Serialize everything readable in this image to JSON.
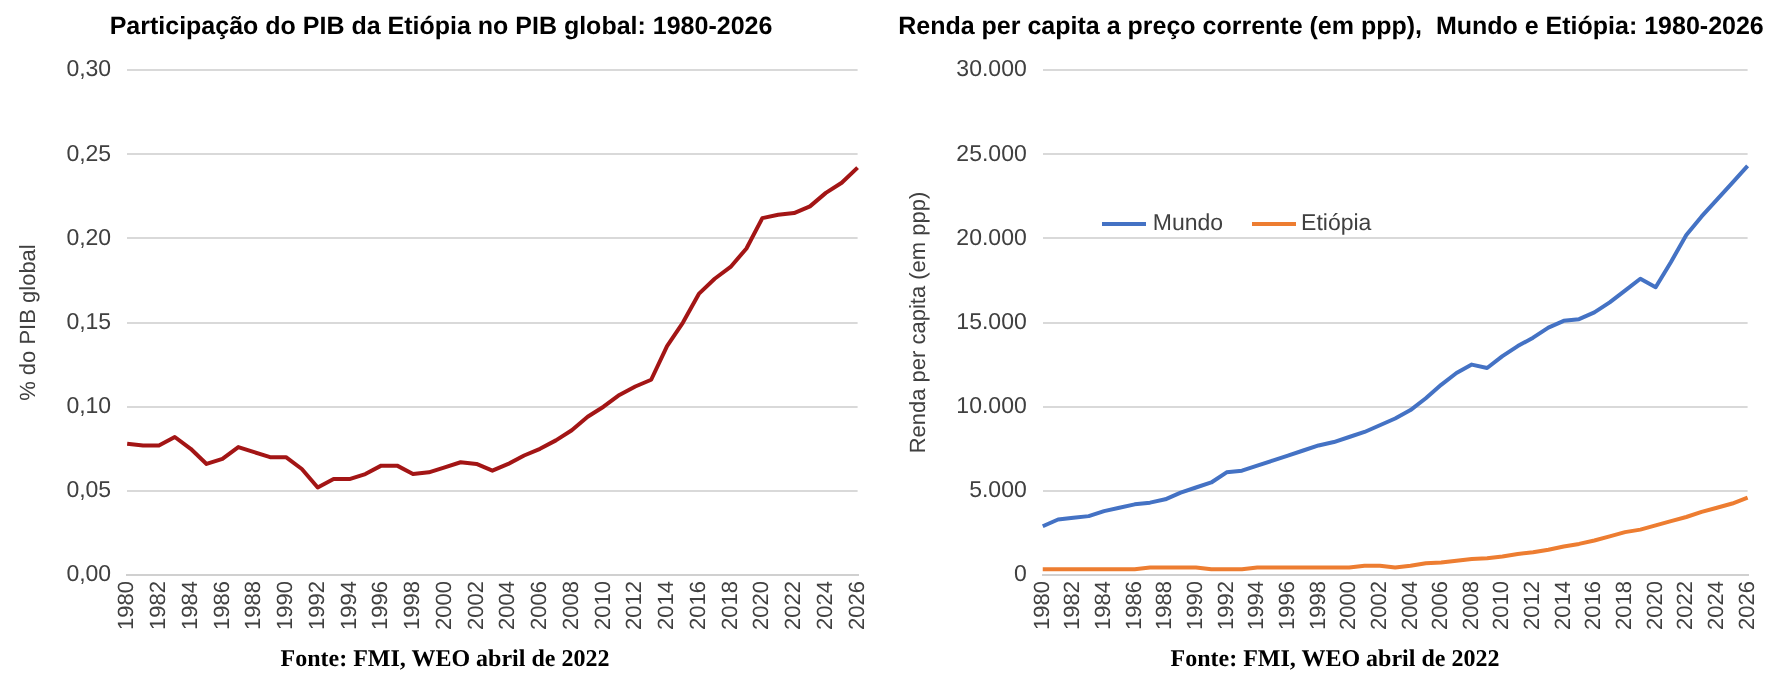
{
  "chart_data": [
    {
      "type": "line",
      "title": "Participação do PIB da Etiópia no PIB global: 1980-2026",
      "ylabel": "% do PIB global",
      "annotations": [
        "Fonte: FMI, WEO abril de 2022"
      ],
      "categories": [
        "1980",
        null,
        "1982",
        null,
        "1984",
        null,
        "1986",
        null,
        "1988",
        null,
        "1990",
        null,
        "1992",
        null,
        "1994",
        null,
        "1996",
        null,
        "1998",
        null,
        "2000",
        null,
        "2002",
        null,
        "2004",
        null,
        "2006",
        null,
        "2008",
        null,
        "2010",
        null,
        "2012",
        null,
        "2014",
        null,
        "2016",
        null,
        "2018",
        null,
        "2020",
        null,
        "2022",
        null,
        "2024",
        null,
        "2026"
      ],
      "color": "#a31515",
      "values": [
        0.078,
        0.077,
        0.077,
        0.082,
        0.075,
        0.066,
        0.069,
        0.076,
        0.073,
        0.07,
        0.07,
        0.063,
        0.052,
        0.057,
        0.057,
        0.06,
        0.065,
        0.065,
        0.06,
        0.061,
        0.064,
        0.067,
        0.066,
        0.062,
        0.066,
        0.071,
        0.075,
        0.08,
        0.086,
        0.094,
        0.1,
        0.107,
        0.112,
        0.116,
        0.136,
        0.15,
        0.167,
        0.176,
        0.183,
        0.194,
        0.212,
        0.214,
        0.215,
        0.219,
        0.227,
        0.233,
        0.242
      ],
      "ylim": [
        0,
        0.3
      ],
      "yticks": [
        {
          "value": 0,
          "label": "0,00"
        },
        {
          "value": 0.05,
          "label": "0,05"
        },
        {
          "value": 0.1,
          "label": "0,10"
        },
        {
          "value": 0.15,
          "label": "0,15"
        },
        {
          "value": 0.2,
          "label": "0,20"
        },
        {
          "value": 0.25,
          "label": "0,25"
        },
        {
          "value": 0.3,
          "label": "0,30"
        }
      ],
      "grid": "y",
      "legend": false,
      "marker": "none",
      "line_style": "solid"
    },
    {
      "type": "line",
      "title": "Renda per capita a preço corrente (em ppp),  Mundo e Etiópia: 1980-2026",
      "ylabel": "Renda per capita (em ppp)",
      "annotations": [
        "Fonte: FMI, WEO abril de 2022"
      ],
      "categories": [
        "1980",
        null,
        "1982",
        null,
        "1984",
        null,
        "1986",
        null,
        "1988",
        null,
        "1990",
        null,
        "1992",
        null,
        "1994",
        null,
        "1996",
        null,
        "1998",
        null,
        "2000",
        null,
        "2002",
        null,
        "2004",
        null,
        "2006",
        null,
        "2008",
        null,
        "2010",
        null,
        "2012",
        null,
        "2014",
        null,
        "2016",
        null,
        "2018",
        null,
        "2020",
        null,
        "2022",
        null,
        "2024",
        null,
        "2026"
      ],
      "series": [
        {
          "name": "Mundo",
          "color": "#4472c4",
          "values": [
            2900,
            3300,
            3400,
            3500,
            3800,
            4000,
            4200,
            4300,
            4500,
            4900,
            5200,
            5500,
            6100,
            6200,
            6500,
            6800,
            7100,
            7400,
            7700,
            7900,
            8200,
            8500,
            8900,
            9300,
            9800,
            10500,
            11300,
            12000,
            12500,
            12300,
            13000,
            13600,
            14100,
            14700,
            15100,
            15200,
            15600,
            16200,
            16900,
            17600,
            17100,
            18600,
            20200,
            21300,
            22300,
            23300,
            24300
          ]
        },
        {
          "name": "Etiópia",
          "color": "#ed7d31",
          "values": [
            350,
            350,
            350,
            350,
            350,
            350,
            350,
            450,
            450,
            450,
            450,
            350,
            350,
            350,
            450,
            450,
            450,
            450,
            450,
            450,
            450,
            550,
            550,
            450,
            550,
            700,
            750,
            850,
            950,
            1000,
            1100,
            1250,
            1350,
            1500,
            1700,
            1850,
            2050,
            2300,
            2550,
            2700,
            2950,
            3200,
            3450,
            3750,
            4000,
            4250,
            4600
          ]
        }
      ],
      "ylim": [
        0,
        30000
      ],
      "yticks": [
        0,
        {
          "value": 5000,
          "label": "5.000"
        },
        {
          "value": 10000,
          "label": "10.000"
        },
        {
          "value": 15000,
          "label": "15.000"
        },
        {
          "value": 20000,
          "label": "20.000"
        },
        {
          "value": 25000,
          "label": "25.000"
        },
        {
          "value": 30000,
          "label": "30.000"
        }
      ],
      "grid": "y",
      "legend": "top left",
      "marker": "none",
      "line_style": "solid"
    }
  ]
}
